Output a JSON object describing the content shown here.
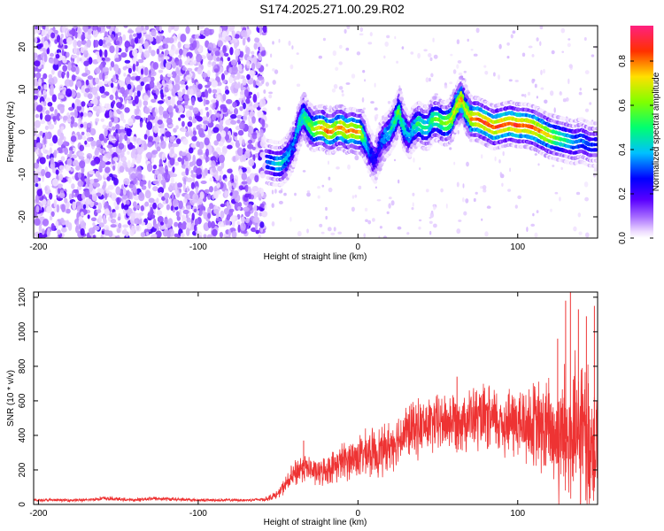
{
  "title": "S174.2025.271.00.29.R02",
  "chart_data": [
    {
      "type": "heatmap",
      "name": "spectrogram",
      "xlabel": "Height of straight line (km)",
      "ylabel": "Frequency (Hz)",
      "xlim": [
        -203,
        150
      ],
      "ylim": [
        -25,
        25
      ],
      "xticks": [
        -200,
        -100,
        0,
        100
      ],
      "yticks": [
        -20,
        -10,
        0,
        10,
        20
      ],
      "colorbar": {
        "label": "Normalized spectral amplitude",
        "range": [
          0,
          0.96
        ],
        "ticks": [
          "0.0",
          "0.2",
          "0.4",
          "0.6",
          "0.8"
        ],
        "tick_values": [
          0,
          0.2,
          0.4,
          0.6,
          0.8
        ]
      },
      "noise_region_x": [
        -203,
        -58
      ],
      "signal_ridge": {
        "x": [
          -57,
          -52,
          -48,
          -44,
          -40,
          -37,
          -34,
          -31,
          -28,
          -25,
          -22,
          -19,
          -16,
          -13,
          -10,
          -7,
          -4,
          -1,
          2,
          5,
          8,
          11,
          14,
          17,
          20,
          23,
          26,
          29,
          32,
          35,
          38,
          41,
          44,
          47,
          50,
          53,
          56,
          59,
          62,
          65,
          68,
          71,
          75,
          80,
          85,
          90,
          95,
          100,
          105,
          110,
          115,
          120,
          125,
          130,
          135,
          140,
          145,
          150
        ],
        "freq": [
          -7,
          -7.5,
          -7.5,
          -6,
          -3,
          1,
          4,
          2,
          0.5,
          1,
          1,
          0,
          0,
          1,
          1,
          0,
          0.5,
          0,
          0,
          -2,
          -5,
          -7,
          -3,
          -1,
          0,
          2,
          5,
          1,
          -1,
          1,
          2,
          1,
          1,
          3,
          3,
          2,
          2,
          3,
          6,
          8,
          5,
          3,
          3,
          2,
          1,
          1.5,
          2,
          1.5,
          1.5,
          1,
          0,
          -1,
          -1.5,
          -2,
          -2.5,
          -2,
          -3,
          -3
        ],
        "amp": [
          0.3,
          0.4,
          0.45,
          0.4,
          0.35,
          0.45,
          0.5,
          0.6,
          0.65,
          0.7,
          0.8,
          0.85,
          0.8,
          0.75,
          0.85,
          0.8,
          0.85,
          0.8,
          0.75,
          0.5,
          0.3,
          0.25,
          0.3,
          0.4,
          0.45,
          0.5,
          0.6,
          0.5,
          0.4,
          0.45,
          0.55,
          0.5,
          0.5,
          0.55,
          0.6,
          0.6,
          0.65,
          0.7,
          0.75,
          0.8,
          0.7,
          0.8,
          0.85,
          0.9,
          0.85,
          0.9,
          0.85,
          0.9,
          0.85,
          0.85,
          0.8,
          0.75,
          0.6,
          0.5,
          0.4,
          0.35,
          0.3,
          0.3
        ]
      }
    },
    {
      "type": "line",
      "name": "snr",
      "xlabel": "Height of straight line (km)",
      "ylabel": "SNR (10 * v/v)",
      "xlim": [
        -203,
        150
      ],
      "ylim": [
        0,
        1230
      ],
      "xticks": [
        -200,
        -100,
        0,
        100
      ],
      "yticks": [
        0,
        200,
        400,
        600,
        800,
        1000,
        1200
      ],
      "color": "#ee3333",
      "envelope": {
        "x": [
          -203,
          -170,
          -160,
          -140,
          -130,
          -100,
          -70,
          -58,
          -50,
          -45,
          -40,
          -37,
          -34,
          -30,
          -25,
          -20,
          -15,
          -10,
          -5,
          0,
          5,
          10,
          15,
          20,
          25,
          30,
          40,
          50,
          60,
          70,
          80,
          90,
          100,
          110,
          120,
          125,
          130,
          135,
          140,
          145,
          150
        ],
        "level": [
          25,
          25,
          35,
          25,
          35,
          25,
          25,
          30,
          60,
          120,
          170,
          200,
          220,
          200,
          180,
          200,
          220,
          250,
          260,
          280,
          290,
          300,
          310,
          340,
          380,
          420,
          450,
          470,
          490,
          500,
          490,
          480,
          470,
          460,
          420,
          400,
          380,
          370,
          380,
          380,
          370
        ],
        "spread": [
          10,
          10,
          15,
          10,
          15,
          10,
          10,
          15,
          30,
          60,
          90,
          110,
          100,
          90,
          90,
          100,
          110,
          130,
          140,
          150,
          160,
          170,
          170,
          170,
          180,
          190,
          200,
          200,
          210,
          220,
          230,
          240,
          260,
          300,
          380,
          450,
          520,
          550,
          550,
          500,
          450
        ]
      },
      "spikes": [
        {
          "x": -34,
          "y": 370
        },
        {
          "x": 62,
          "y": 740
        },
        {
          "x": 125,
          "y": 960
        },
        {
          "x": 130,
          "y": 1180
        },
        {
          "x": 133,
          "y": 1230
        },
        {
          "x": 138,
          "y": 1130
        },
        {
          "x": 143,
          "y": 1090
        },
        {
          "x": 148,
          "y": 1150
        }
      ]
    }
  ]
}
